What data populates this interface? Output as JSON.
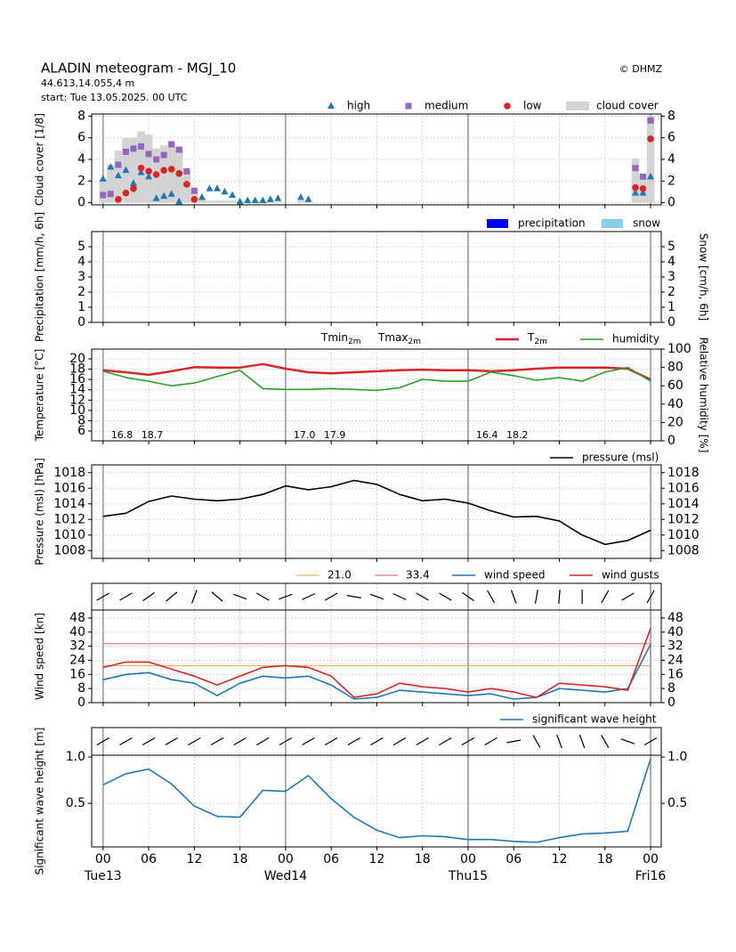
{
  "header": {
    "title": "ALADIN meteogram - MGJ_10",
    "location": "44.613,14.055,4 m",
    "start": "start: Tue 13.05.2025. 00 UTC",
    "credit": "© DHMZ"
  },
  "x_axis": {
    "xlim": [
      -1.5,
      73.4
    ],
    "xticks": [
      {
        "value": 0,
        "label": "00"
      },
      {
        "value": 6,
        "label": "06"
      },
      {
        "value": 12,
        "label": "12"
      },
      {
        "value": 18,
        "label": "18"
      },
      {
        "value": 24,
        "label": "00"
      },
      {
        "value": 30,
        "label": "06"
      },
      {
        "value": 36,
        "label": "12"
      },
      {
        "value": 42,
        "label": "18"
      },
      {
        "value": 48,
        "label": "00"
      },
      {
        "value": 54,
        "label": "06"
      },
      {
        "value": 60,
        "label": "12"
      },
      {
        "value": 66,
        "label": "18"
      },
      {
        "value": 72,
        "label": "00"
      }
    ],
    "day_labels": [
      {
        "value": 0,
        "label": "Tue13"
      },
      {
        "value": 24,
        "label": "Wed14"
      },
      {
        "value": 48,
        "label": "Thu15"
      },
      {
        "value": 72,
        "label": "Fri16"
      }
    ]
  },
  "chart_data": [
    {
      "type": "scatter",
      "ylabel": "Cloud cover [1/8]",
      "ylim": [
        -0.2,
        8.2
      ],
      "yticks": [
        0,
        2,
        4,
        6,
        8
      ],
      "y2ticks": [
        0,
        2,
        4,
        6,
        8
      ],
      "grid": true,
      "x": [
        0,
        1,
        2,
        3,
        4,
        5,
        6,
        7,
        8,
        9,
        10,
        11,
        12,
        13,
        14,
        15,
        16,
        17,
        18,
        19,
        20,
        21,
        22,
        23,
        24,
        25,
        26,
        27,
        70,
        71,
        72
      ],
      "series": [
        {
          "name": "high",
          "marker": "triangle",
          "color": "#1f77b4",
          "values": [
            2.2,
            3.3,
            2.5,
            3.0,
            1.8,
            2.8,
            2.4,
            0.4,
            0.6,
            0.8,
            0.1,
            null,
            null,
            0.5,
            1.3,
            1.3,
            1.0,
            0.7,
            0.1,
            0.2,
            0.2,
            0.2,
            0.3,
            0.4,
            null,
            null,
            0.5,
            0.3,
            0.9,
            0.9,
            2.4
          ]
        },
        {
          "name": "medium",
          "marker": "square",
          "color": "#9467bd",
          "values": [
            0.7,
            0.8,
            3.5,
            4.7,
            5.0,
            5.2,
            4.5,
            4.0,
            4.4,
            5.4,
            4.9,
            2.9,
            1.1,
            null,
            null,
            null,
            null,
            null,
            null,
            null,
            null,
            null,
            null,
            null,
            null,
            null,
            null,
            null,
            3.2,
            2.4,
            7.6
          ]
        },
        {
          "name": "low",
          "marker": "circle",
          "color": "#d62728",
          "values": [
            null,
            null,
            0.3,
            0.9,
            1.3,
            3.2,
            2.9,
            2.6,
            3.0,
            3.1,
            2.7,
            1.7,
            0.3,
            null,
            null,
            null,
            null,
            null,
            null,
            null,
            null,
            null,
            null,
            null,
            null,
            null,
            null,
            null,
            1.4,
            1.3,
            5.9
          ]
        },
        {
          "name": "cloud cover",
          "marker": "bar",
          "color": "#d3d3d3",
          "values": [
            2.2,
            3.5,
            4.8,
            6.0,
            6.0,
            6.6,
            6.3,
            5.0,
            5.3,
            5.5,
            5.1,
            3.0,
            1.2,
            0.4,
            0.2,
            0.2,
            0.2,
            0.2,
            0.1,
            0.1,
            0.1,
            0.1,
            0.1,
            0.1,
            0,
            0,
            0.2,
            0.1,
            4.1,
            2.6,
            8.0
          ]
        }
      ]
    },
    {
      "type": "bar",
      "ylabel": "Precipitation [mm/h, 6h]",
      "y2label": "Snow [cm/h, 6h]",
      "ylim": [
        0,
        6
      ],
      "yticks": [
        0,
        1,
        2,
        3,
        4,
        5
      ],
      "y2ticks": [
        0,
        1,
        2,
        3,
        4,
        5
      ],
      "grid": true,
      "x": [],
      "series": [
        {
          "name": "precipitation",
          "color": "#0000ff",
          "values": []
        },
        {
          "name": "snow",
          "color": "#87ceeb",
          "values": []
        }
      ]
    },
    {
      "type": "line",
      "ylabel": "Temperature [°C]",
      "y2label": "Relative humidity [%]",
      "ylim": [
        4.1,
        21.9
      ],
      "yticks": [
        6,
        8,
        10,
        12,
        14,
        16,
        18,
        20
      ],
      "y2lim": [
        0,
        100
      ],
      "y2ticks": [
        0,
        20,
        40,
        60,
        80,
        100
      ],
      "grid": true,
      "x": [
        0,
        3,
        6,
        9,
        12,
        15,
        18,
        21,
        24,
        27,
        30,
        33,
        36,
        39,
        42,
        45,
        48,
        51,
        54,
        57,
        60,
        63,
        66,
        69,
        72
      ],
      "tmin_name": {
        "base": "Tmin",
        "sub": "2m",
        "color": "#1f77b4"
      },
      "tmax_name": {
        "base": "Tmax",
        "sub": "2m",
        "color": "#d62728"
      },
      "daily": {
        "x": [
          0,
          24,
          48
        ],
        "tmin": [
          16.8,
          17.0,
          16.4
        ],
        "tmin_labels": [
          "16.8",
          "17.0",
          "16.4"
        ],
        "tmax": [
          18.7,
          17.9,
          18.2
        ],
        "tmax_labels": [
          "18.7",
          "17.9",
          "18.2"
        ]
      },
      "series": [
        {
          "name": {
            "base": "T",
            "sub": "2m"
          },
          "color": "#d62728",
          "width": 2.5,
          "values": [
            17.8,
            17.4,
            16.9,
            17.6,
            18.4,
            18.3,
            18.3,
            19.0,
            18.1,
            17.4,
            17.2,
            17.4,
            17.6,
            17.8,
            17.9,
            17.8,
            17.8,
            17.6,
            17.8,
            18.1,
            18.3,
            18.3,
            18.3,
            18.1,
            16.0
          ]
        },
        {
          "name": "humidity",
          "color": "#2ca02c",
          "width": 1.6,
          "axis": "y2",
          "values": [
            76,
            69,
            65,
            60,
            63,
            70,
            77,
            57,
            56,
            56,
            57,
            56,
            55,
            58,
            67,
            65,
            65,
            75,
            71,
            66,
            69,
            65,
            75,
            80,
            65
          ]
        }
      ]
    },
    {
      "type": "line",
      "ylabel": "Pressure (msl) [hPa]",
      "ylim": [
        1007,
        1019
      ],
      "yticks": [
        1008,
        1010,
        1012,
        1014,
        1016,
        1018
      ],
      "y2ticks": [
        1008,
        1010,
        1012,
        1014,
        1016,
        1018
      ],
      "grid": true,
      "x": [
        0,
        3,
        6,
        9,
        12,
        15,
        18,
        21,
        24,
        27,
        30,
        33,
        36,
        39,
        42,
        45,
        48,
        51,
        54,
        57,
        60,
        63,
        66,
        69,
        72
      ],
      "series": [
        {
          "name": "pressure (msl)",
          "color": "#000000",
          "width": 1.6,
          "values": [
            1012.4,
            1012.8,
            1014.3,
            1015.0,
            1014.6,
            1014.4,
            1014.6,
            1015.2,
            1016.3,
            1015.8,
            1016.2,
            1017.0,
            1016.5,
            1015.2,
            1014.4,
            1014.6,
            1014.1,
            1013.1,
            1012.3,
            1012.4,
            1011.8,
            1010.0,
            1008.8,
            1009.3,
            1010.6
          ]
        }
      ]
    },
    {
      "type": "line",
      "ylabel": "Wind speed [kn]",
      "ylim": [
        0,
        52.5
      ],
      "yticks": [
        0,
        8,
        16,
        24,
        32,
        40,
        48
      ],
      "y2ticks": [
        0,
        8,
        16,
        24,
        32,
        40,
        48
      ],
      "grid": true,
      "x": [
        0,
        3,
        6,
        9,
        12,
        15,
        18,
        21,
        24,
        27,
        30,
        33,
        36,
        39,
        42,
        45,
        48,
        51,
        54,
        57,
        60,
        63,
        66,
        69,
        72
      ],
      "thresholds": [
        {
          "value": 21.0,
          "label": "21.0",
          "color": "#e8a050"
        },
        {
          "value": 33.4,
          "label": "33.4",
          "color": "#e05050"
        }
      ],
      "direction": [
        60,
        60,
        55,
        50,
        20,
        130,
        110,
        120,
        70,
        65,
        60,
        100,
        110,
        115,
        120,
        120,
        125,
        150,
        160,
        10,
        5,
        0,
        30,
        60,
        30
      ],
      "series": [
        {
          "name": "wind speed",
          "color": "#1f77b4",
          "width": 1.6,
          "values": [
            13,
            16,
            17,
            13,
            11,
            4,
            11,
            15,
            14,
            15,
            10,
            2,
            3,
            7,
            6,
            5,
            4,
            5,
            2,
            3,
            8,
            7,
            6,
            8,
            33
          ]
        },
        {
          "name": "wind gusts",
          "color": "#d62728",
          "width": 1.6,
          "values": [
            20,
            23,
            23,
            19,
            15,
            10,
            15,
            20,
            21,
            20,
            15,
            3,
            5,
            11,
            9,
            8,
            6,
            8,
            6,
            3,
            11,
            10,
            9,
            7,
            42
          ]
        }
      ]
    },
    {
      "type": "line",
      "ylabel": "Significant wave height [m]",
      "ylim": [
        0.03,
        1.02
      ],
      "yticks": [
        0.5,
        {
          "value": 1.0,
          "label": "1.0"
        }
      ],
      "y2ticks": [
        0.5,
        {
          "value": 1.0,
          "label": "1.0"
        }
      ],
      "grid": true,
      "x": [
        0,
        3,
        6,
        9,
        12,
        15,
        18,
        21,
        24,
        27,
        30,
        33,
        36,
        39,
        42,
        45,
        48,
        51,
        54,
        57,
        60,
        63,
        66,
        69,
        72
      ],
      "direction": [
        60,
        60,
        60,
        60,
        60,
        60,
        60,
        60,
        60,
        60,
        60,
        60,
        60,
        60,
        60,
        60,
        60,
        60,
        80,
        150,
        160,
        160,
        150,
        110,
        60
      ],
      "series": [
        {
          "name": "significant wave height",
          "color": "#1f77b4",
          "width": 1.6,
          "values": [
            0.7,
            0.82,
            0.87,
            0.71,
            0.47,
            0.36,
            0.35,
            0.64,
            0.63,
            0.8,
            0.55,
            0.35,
            0.21,
            0.13,
            0.15,
            0.14,
            0.11,
            0.11,
            0.09,
            0.08,
            0.13,
            0.17,
            0.18,
            0.2,
            0.98
          ]
        }
      ]
    }
  ]
}
